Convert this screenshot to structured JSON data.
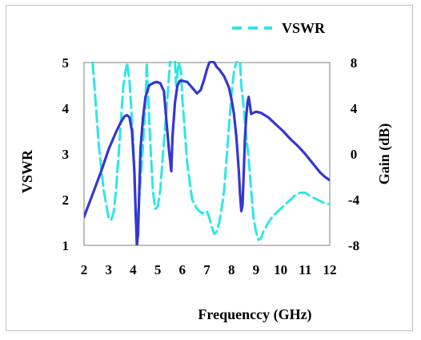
{
  "chart_data": {
    "type": "line",
    "title": "",
    "xlabel": "Frequenccy (GHz)",
    "ylabel_left": "VSWR",
    "ylabel_right": "Gain (dB)",
    "xlim": [
      2,
      12
    ],
    "ylim_left": [
      1,
      5
    ],
    "ylim_right": [
      -8,
      8
    ],
    "x_ticks": [
      "2",
      "3",
      "4",
      "5",
      "6",
      "7",
      "8",
      "9",
      "10",
      "11",
      "12"
    ],
    "y_left_ticks": [
      "1",
      "2",
      "3",
      "4",
      "5"
    ],
    "y_right_ticks": [
      "-8",
      "-4",
      "0",
      "4",
      "8"
    ],
    "grid": false,
    "legend": {
      "position": "top-right",
      "entries": [
        "VSWR"
      ]
    },
    "series": [
      {
        "name": "VSWR",
        "axis": "left",
        "color": "#2ee6e6",
        "style": "solid-dashed-above-5",
        "x": [
          2.35,
          2.45,
          2.6,
          2.8,
          3.0,
          3.1,
          3.2,
          3.3,
          3.45,
          3.6,
          3.75,
          3.85,
          4.0,
          4.1,
          4.15,
          4.2,
          4.3,
          4.4,
          4.5,
          4.55,
          4.6,
          4.7,
          4.8,
          4.9,
          5.0,
          5.1,
          5.2,
          5.35,
          5.5,
          5.65,
          5.75,
          5.85,
          5.95,
          6.0,
          6.1,
          6.2,
          6.4,
          6.6,
          6.8,
          7.0,
          7.1,
          7.2,
          7.3,
          7.4,
          7.5,
          7.6,
          7.7,
          7.8,
          7.9,
          8.0,
          8.1,
          8.2,
          8.3,
          8.35,
          8.4,
          8.5,
          8.6,
          8.7,
          8.8,
          8.9,
          9.0,
          9.1,
          9.2,
          9.3,
          9.5,
          9.7,
          10.0,
          10.3,
          10.6,
          10.8,
          11.0,
          11.2,
          11.5,
          11.8,
          12.0
        ],
        "y": [
          5.0,
          4.3,
          3.2,
          2.2,
          1.6,
          1.55,
          1.7,
          2.2,
          3.3,
          4.5,
          5.0,
          4.6,
          3.3,
          1.6,
          1.5,
          1.7,
          2.4,
          3.2,
          4.1,
          5.0,
          4.4,
          3.2,
          2.2,
          1.8,
          1.85,
          2.2,
          2.9,
          3.9,
          5.0,
          5.5,
          4.5,
          5.0,
          4.8,
          4.2,
          3.5,
          2.8,
          2.0,
          1.8,
          1.7,
          1.75,
          1.6,
          1.4,
          1.25,
          1.3,
          1.5,
          1.8,
          2.2,
          2.9,
          3.6,
          4.3,
          4.8,
          5.0,
          5.1,
          5.0,
          4.5,
          4.0,
          3.4,
          2.9,
          2.2,
          1.6,
          1.3,
          1.12,
          1.15,
          1.3,
          1.5,
          1.65,
          1.8,
          1.95,
          2.1,
          2.15,
          2.15,
          2.08,
          2.0,
          1.92,
          1.9
        ]
      },
      {
        "name": "Gain",
        "axis": "right",
        "color": "#3636cf",
        "style": "solid",
        "x": [
          2.0,
          2.3,
          2.7,
          3.0,
          3.3,
          3.5,
          3.65,
          3.75,
          3.85,
          3.95,
          4.05,
          4.1,
          4.15,
          4.2,
          4.25,
          4.3,
          4.4,
          4.5,
          4.65,
          4.8,
          4.95,
          5.1,
          5.25,
          5.35,
          5.45,
          5.55,
          5.6,
          5.7,
          5.8,
          5.9,
          6.0,
          6.2,
          6.4,
          6.6,
          6.75,
          6.9,
          7.0,
          7.1,
          7.2,
          7.3,
          7.4,
          7.5,
          7.6,
          7.7,
          7.8,
          7.9,
          8.0,
          8.1,
          8.2,
          8.3,
          8.35,
          8.4,
          8.45,
          8.5,
          8.55,
          8.6,
          8.65,
          8.7,
          8.8,
          8.9,
          9.0,
          9.2,
          9.5,
          9.8,
          10.1,
          10.4,
          10.7,
          11.0,
          11.3,
          11.6,
          11.8,
          12.0
        ],
        "y": [
          -5.5,
          -3.8,
          -1.5,
          0.4,
          1.9,
          2.8,
          3.3,
          3.4,
          3.2,
          2.0,
          -1.5,
          -5.0,
          -8.0,
          -7.0,
          -3.0,
          0.5,
          3.2,
          5.0,
          6.0,
          6.2,
          6.3,
          6.2,
          5.5,
          3.0,
          0.5,
          -1.5,
          1.5,
          4.5,
          6.0,
          6.4,
          6.4,
          6.3,
          5.8,
          5.3,
          5.6,
          6.6,
          7.4,
          8.0,
          8.1,
          8.0,
          7.6,
          7.4,
          7.1,
          6.8,
          6.3,
          5.8,
          4.8,
          3.5,
          1.5,
          -1.5,
          -3.5,
          -5.0,
          -4.5,
          -1.5,
          1.5,
          3.2,
          4.5,
          5.0,
          3.5,
          3.6,
          3.7,
          3.6,
          3.2,
          2.6,
          2.0,
          1.3,
          0.7,
          0.0,
          -0.8,
          -1.6,
          -2.0,
          -2.3
        ]
      }
    ]
  }
}
